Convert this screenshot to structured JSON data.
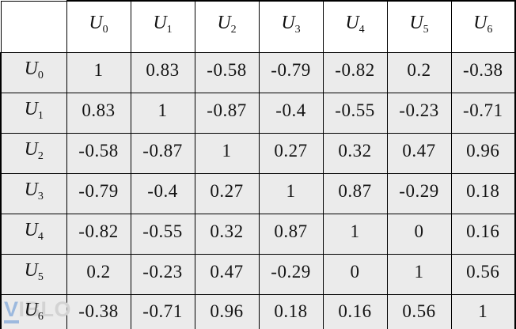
{
  "watermark": {
    "v": "V",
    "rest": "IBLO"
  },
  "colors": {
    "diagonal_fill": "#b4c7e7",
    "cell_fill": "#ebebeb",
    "header_fill": "#ffffff",
    "border": "#000000",
    "watermark_blue": "#9cb9de",
    "watermark_gray": "#d3d3d3"
  },
  "chart_data": {
    "type": "table",
    "title": "",
    "col_headers": [
      "U0",
      "U1",
      "U2",
      "U3",
      "U4",
      "U5",
      "U6"
    ],
    "row_headers": [
      "U0",
      "U1",
      "U2",
      "U3",
      "U4",
      "U5",
      "U6"
    ],
    "values": [
      [
        1,
        0.83,
        -0.58,
        -0.79,
        -0.82,
        0.2,
        -0.38
      ],
      [
        0.83,
        1,
        -0.87,
        -0.4,
        -0.55,
        -0.23,
        -0.71
      ],
      [
        -0.58,
        -0.87,
        1,
        0.27,
        0.32,
        0.47,
        0.96
      ],
      [
        -0.79,
        -0.4,
        0.27,
        1,
        0.87,
        -0.29,
        0.18
      ],
      [
        -0.82,
        -0.55,
        0.32,
        0.87,
        1,
        0,
        0.16
      ],
      [
        0.2,
        -0.23,
        0.47,
        -0.29,
        0,
        1,
        0.56
      ],
      [
        -0.38,
        -0.71,
        0.96,
        0.18,
        0.16,
        0.56,
        1
      ]
    ],
    "highlight": "diagonal",
    "legend": "none",
    "grid": "on"
  }
}
